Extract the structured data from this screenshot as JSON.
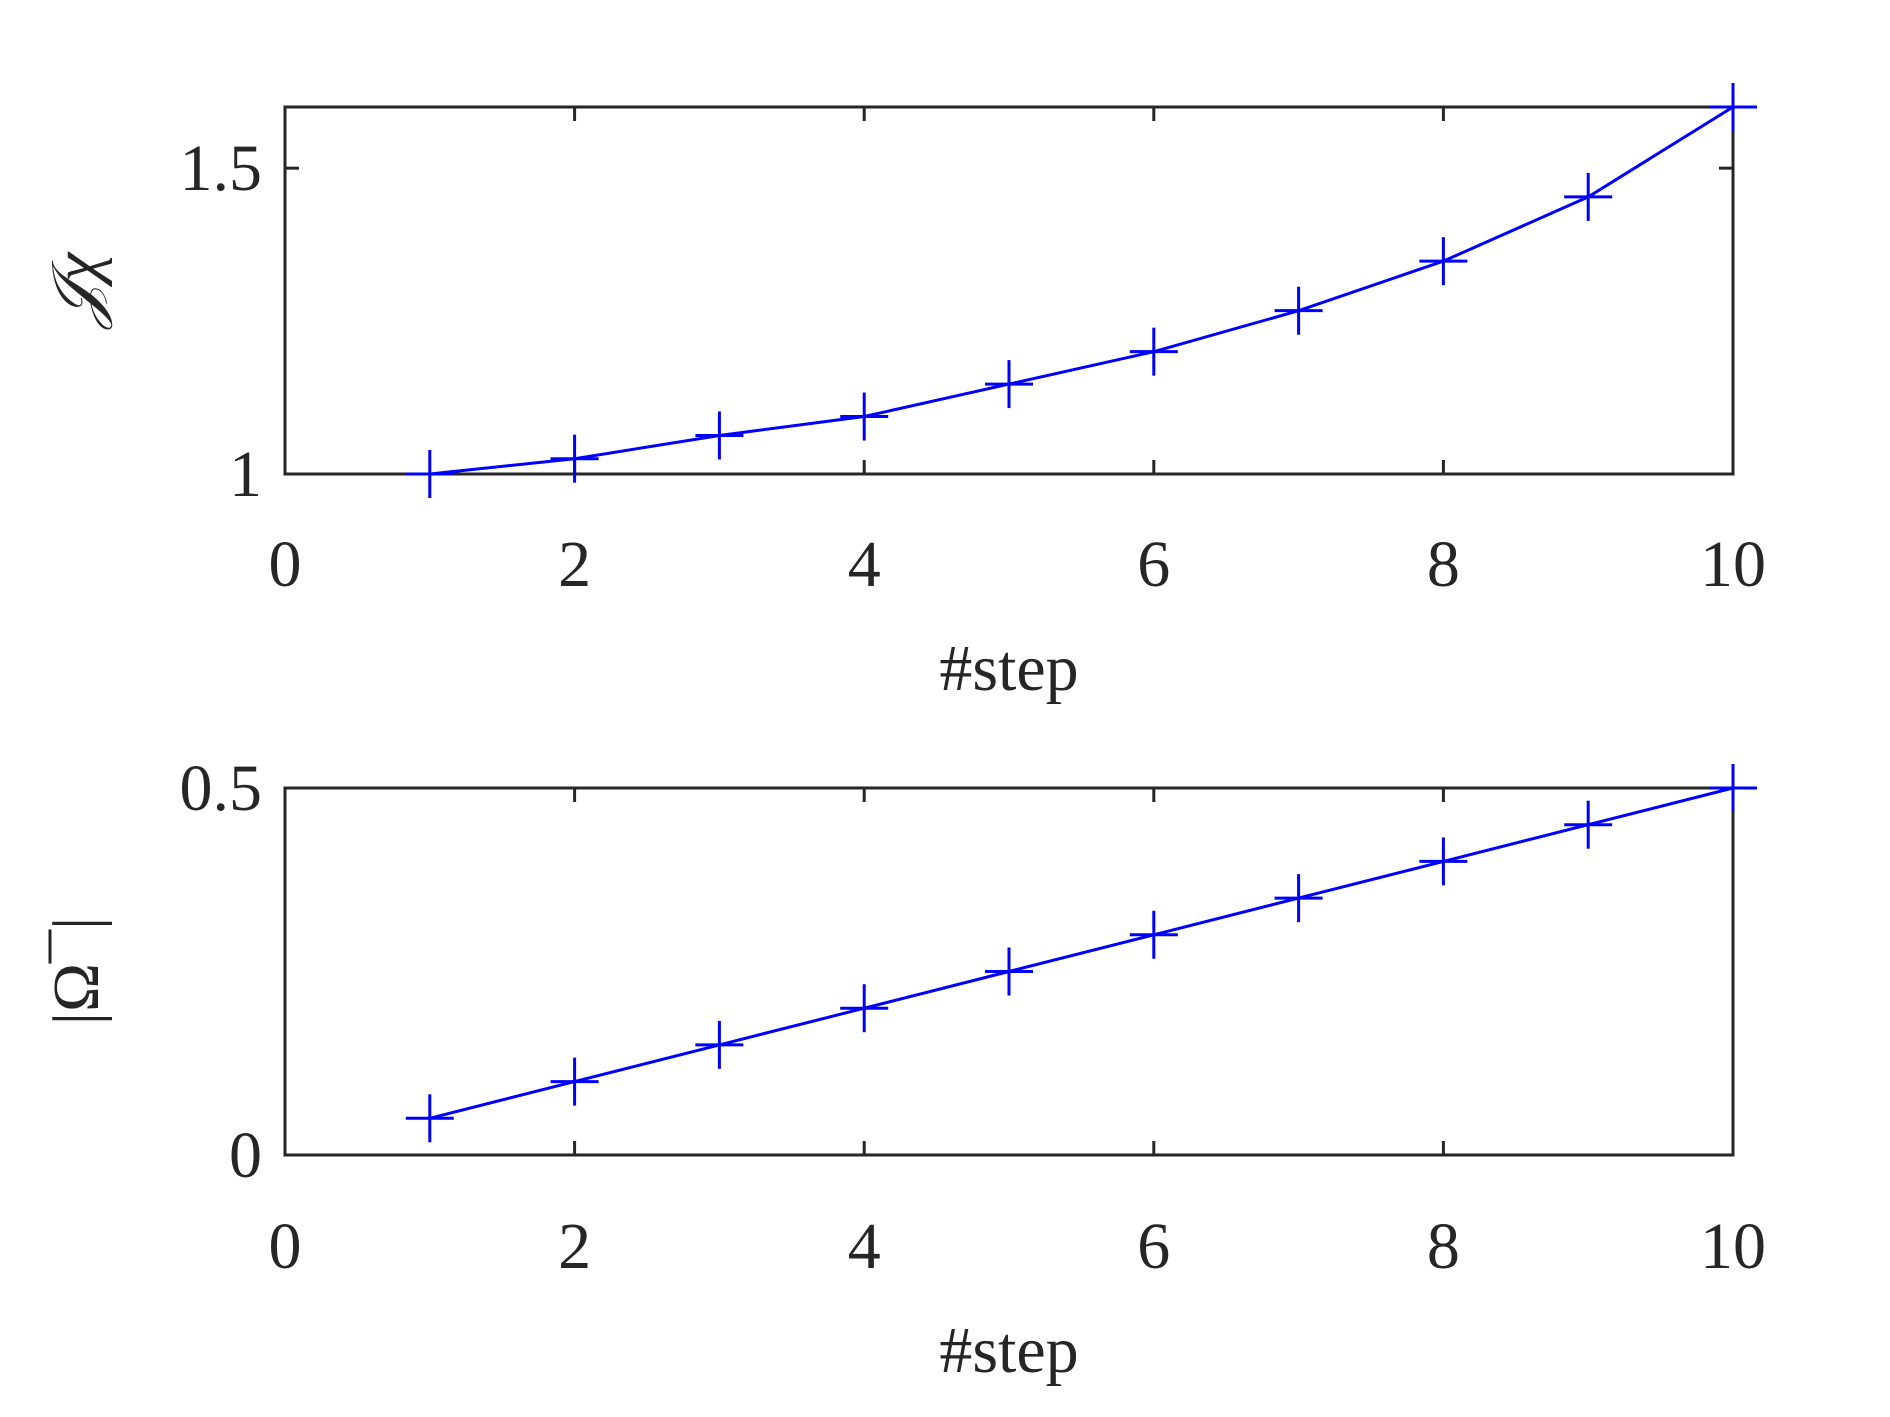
{
  "figure": {
    "accent_color": "#0000ff"
  },
  "chart_data": [
    {
      "type": "line",
      "xlabel": "#step",
      "ylabel": "𝒥χ",
      "xlim": [
        0,
        10
      ],
      "ylim": [
        1,
        1.6
      ],
      "xticks": [
        "0",
        "2",
        "4",
        "6",
        "8",
        "10"
      ],
      "yticks": [
        "1",
        "1.5"
      ],
      "ytick_values": [
        1,
        1.5
      ],
      "grid": true,
      "minor_grid": true,
      "marker": "+",
      "series": [
        {
          "color": "#0000ff",
          "x": [
            1,
            2,
            3,
            4,
            5,
            6,
            7,
            8,
            9,
            10
          ],
          "values": [
            1.0,
            1.025,
            1.063,
            1.094,
            1.147,
            1.2,
            1.267,
            1.348,
            1.453,
            1.6
          ]
        }
      ]
    },
    {
      "type": "line",
      "xlabel": "#step",
      "ylabel": "|Ω¯|",
      "xlim": [
        0,
        10
      ],
      "ylim": [
        0,
        0.5
      ],
      "xticks": [
        "0",
        "2",
        "4",
        "6",
        "8",
        "10"
      ],
      "yticks": [
        "0",
        "0.5"
      ],
      "ytick_values": [
        0,
        0.5
      ],
      "grid": true,
      "minor_grid": true,
      "marker": "+",
      "series": [
        {
          "color": "#0000ff",
          "x": [
            1,
            2,
            3,
            4,
            5,
            6,
            7,
            8,
            9,
            10
          ],
          "values": [
            0.05,
            0.1,
            0.15,
            0.2,
            0.25,
            0.3,
            0.35,
            0.4,
            0.45,
            0.5
          ]
        }
      ]
    }
  ]
}
